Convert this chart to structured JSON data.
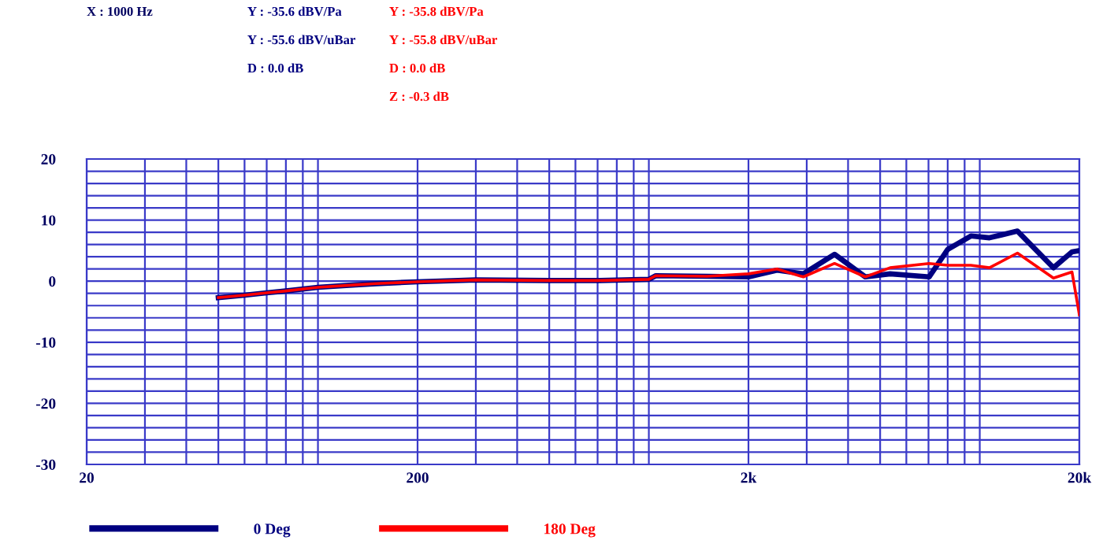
{
  "chart_data": {
    "type": "line",
    "log": "x",
    "xlim": [
      20,
      20000
    ],
    "ylim": [
      -30,
      20
    ],
    "xticks": [
      {
        "value": 20,
        "label": "20"
      },
      {
        "value": 200,
        "label": "200"
      },
      {
        "value": 2000,
        "label": "2k"
      },
      {
        "value": 20000,
        "label": "20k"
      }
    ],
    "yticks": [
      -30,
      -20,
      -10,
      0,
      10,
      20
    ],
    "grid": true,
    "legend": "bottom",
    "line_style": "solid",
    "marker": "none",
    "annotations": [
      "X : 1000 Hz",
      "Y : -35.6 dBV/Pa",
      "Y : -55.6 dBV/uBar",
      "D : 0.0 dB",
      "Y : -35.8 dBV/Pa",
      "Y : -55.8 dBV/uBar",
      "D : 0.0 dB",
      "Z : -0.3 dB"
    ],
    "series": [
      {
        "name": "0 Deg",
        "color": "#000080",
        "x": [
          50,
          60,
          70,
          80,
          100,
          130,
          150,
          200,
          300,
          500,
          700,
          1000,
          1050,
          1500,
          2000,
          2440,
          2930,
          3640,
          4510,
          5360,
          7030,
          8000,
          9400,
          10700,
          13000,
          16700,
          19000,
          20000
        ],
        "values": [
          -2.7,
          -2.3,
          -1.9,
          -1.6,
          -1.0,
          -0.6,
          -0.4,
          -0.1,
          0.2,
          0.1,
          0.1,
          0.3,
          0.9,
          0.8,
          0.7,
          1.8,
          1.2,
          4.4,
          0.7,
          1.2,
          0.7,
          5.2,
          7.4,
          7.1,
          8.2,
          2.2,
          4.8,
          5.0
        ]
      },
      {
        "name": "180 Deg",
        "color": "#ff0000",
        "x": [
          50,
          60,
          70,
          80,
          100,
          130,
          150,
          200,
          300,
          500,
          700,
          1000,
          1050,
          1500,
          2000,
          2440,
          2930,
          3640,
          4510,
          5360,
          7030,
          8000,
          9400,
          10700,
          13000,
          16700,
          19000,
          20000
        ],
        "values": [
          -2.7,
          -2.3,
          -1.9,
          -1.6,
          -1.0,
          -0.6,
          -0.4,
          -0.1,
          0.2,
          0.1,
          0.1,
          0.3,
          0.9,
          0.8,
          1.2,
          2.0,
          0.7,
          2.9,
          0.7,
          2.2,
          2.9,
          2.6,
          2.6,
          2.2,
          4.6,
          0.5,
          1.5,
          -5.5
        ]
      }
    ]
  }
}
